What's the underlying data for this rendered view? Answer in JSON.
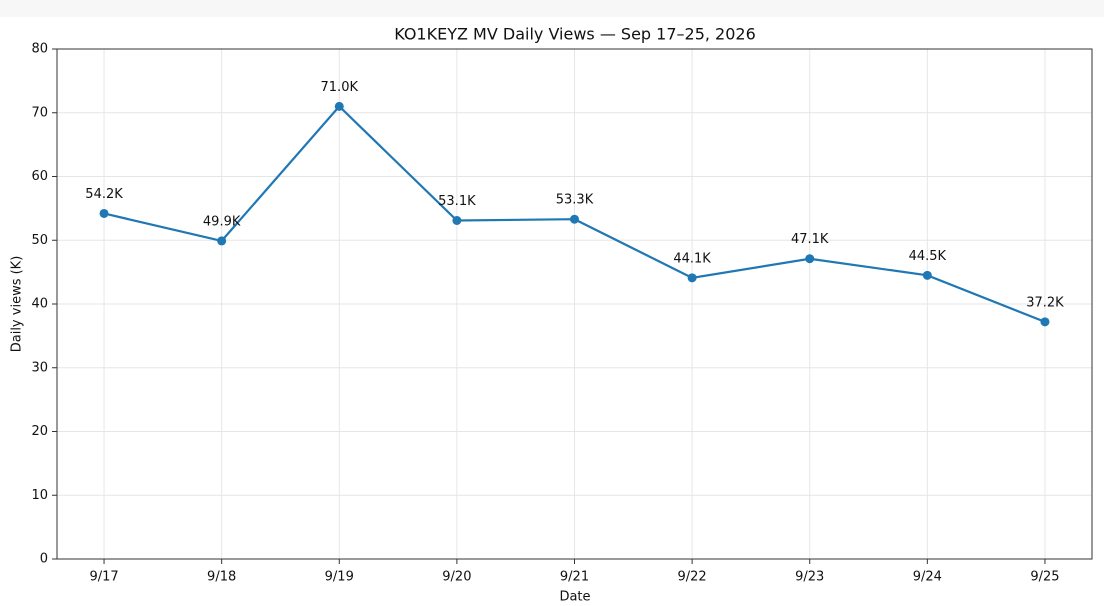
{
  "chart_data": {
    "type": "line",
    "title": "KO1KEYZ MV Daily Views — Sep 17–25, 2026",
    "x_label": "Date",
    "y_label": "Daily views (K)",
    "categories": [
      "9/17",
      "9/18",
      "9/19",
      "9/20",
      "9/21",
      "9/22",
      "9/23",
      "9/24",
      "9/25"
    ],
    "series": [
      {
        "name": "Daily views",
        "color": "#1f77b4",
        "values": [
          54.2,
          49.9,
          71.0,
          53.1,
          53.3,
          44.1,
          47.1,
          44.5,
          37.2
        ],
        "value_labels": [
          "54.2K",
          "49.9K",
          "71.0K",
          "53.1K",
          "53.3K",
          "44.1K",
          "47.1K",
          "44.5K",
          "37.2K"
        ]
      }
    ],
    "ylim": [
      0,
      80
    ],
    "yticks": [
      0,
      10,
      20,
      30,
      40,
      50,
      60,
      70,
      80
    ],
    "grid": true
  }
}
